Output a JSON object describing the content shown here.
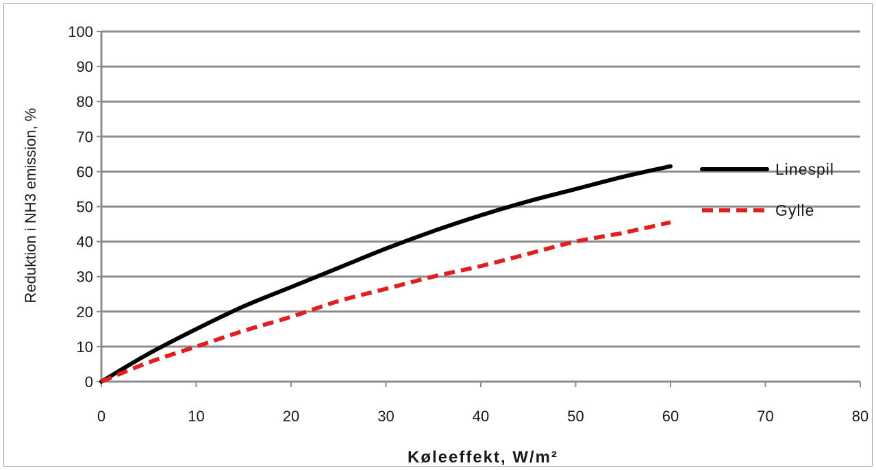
{
  "chart_data": {
    "type": "line",
    "xlabel": "Køleeffekt, W/m²",
    "ylabel": "Reduktion i NH3 emission, %",
    "xlim": [
      0,
      80
    ],
    "ylim": [
      0,
      100
    ],
    "x_ticks": [
      0,
      10,
      20,
      30,
      40,
      50,
      60,
      70,
      80
    ],
    "y_ticks": [
      0,
      10,
      20,
      30,
      40,
      50,
      60,
      70,
      80,
      90,
      100
    ],
    "grid": "horizontal",
    "legend_position": "right",
    "series": [
      {
        "name": "Linespil",
        "color": "#000000",
        "style": "solid",
        "x": [
          0,
          5,
          10,
          15,
          20,
          25,
          30,
          35,
          40,
          45,
          50,
          55,
          60
        ],
        "y": [
          0,
          8,
          15,
          21.5,
          27,
          32.5,
          38,
          43,
          47.5,
          51.5,
          55,
          58.5,
          61.5
        ]
      },
      {
        "name": "Gylle",
        "color": "#e02020",
        "style": "dashed",
        "x": [
          0,
          5,
          10,
          15,
          20,
          25,
          30,
          35,
          40,
          45,
          50,
          55,
          60
        ],
        "y": [
          0,
          5.5,
          10,
          14.5,
          18.5,
          23,
          26.5,
          30,
          33,
          36.5,
          40,
          42.5,
          45.5
        ]
      }
    ]
  }
}
